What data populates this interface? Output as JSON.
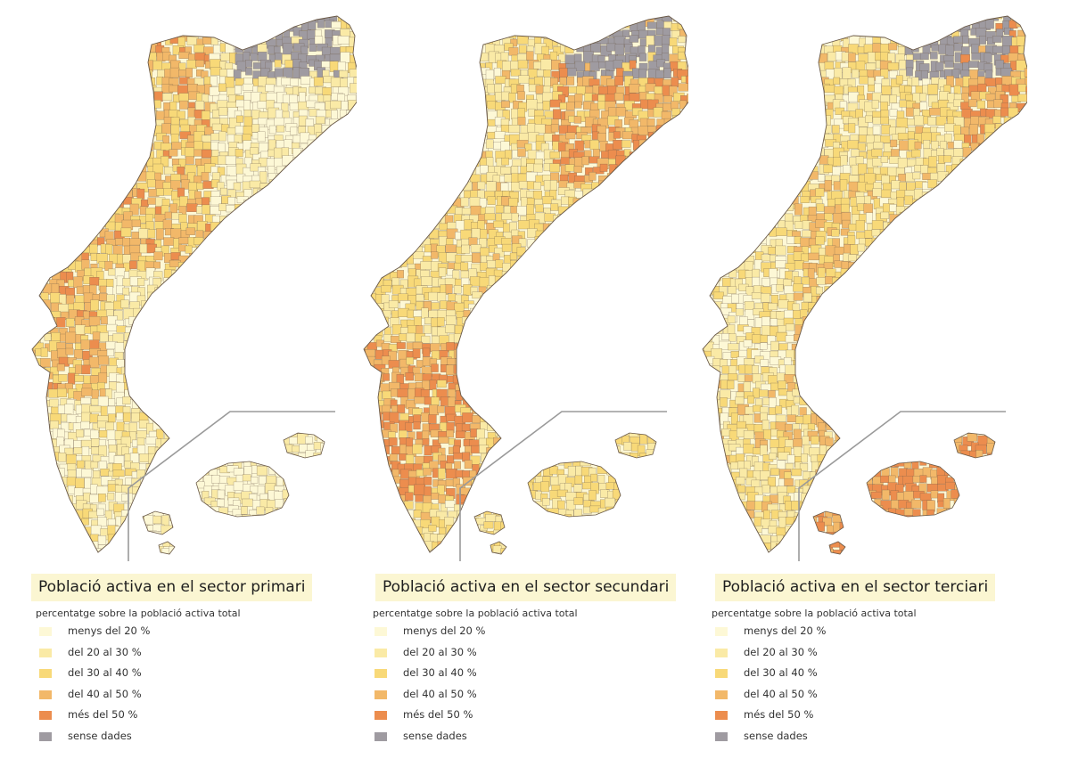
{
  "colors": {
    "c0": "#fdf8d6",
    "c1": "#faeaa6",
    "c2": "#f8d978",
    "c3": "#f2b869",
    "c4": "#ec8d4e",
    "nd": "#9f9ba1",
    "border": "#6b5a48",
    "frame": "#9a9a9a"
  },
  "panels": [
    {
      "title": "Població activa en el sector primari",
      "subtitle": "percentatge sobre la població activa total",
      "theme": "primari",
      "legend": [
        {
          "label": "menys del 20 %",
          "color": "#fdf8d6"
        },
        {
          "label": "del 20 al 30 %",
          "color": "#faeaa6"
        },
        {
          "label": "del 30 al 40 %",
          "color": "#f8d978"
        },
        {
          "label": "del 40 al 50 %",
          "color": "#f2b869"
        },
        {
          "label": "més del 50 %",
          "color": "#ec8d4e"
        },
        {
          "label": "sense dades",
          "color": "#9f9ba1"
        }
      ]
    },
    {
      "title": "Població activa en el sector secundari",
      "subtitle": "percentatge sobre la població activa total",
      "theme": "secundari",
      "legend": [
        {
          "label": "menys del 20 %",
          "color": "#fdf8d6"
        },
        {
          "label": "del 20 al 30 %",
          "color": "#faeaa6"
        },
        {
          "label": "del 30 al 40 %",
          "color": "#f8d978"
        },
        {
          "label": "del 40 al 50 %",
          "color": "#f2b869"
        },
        {
          "label": "més del 50 %",
          "color": "#ec8d4e"
        },
        {
          "label": "sense dades",
          "color": "#9f9ba1"
        }
      ]
    },
    {
      "title": "Població activa en el sector terciari",
      "subtitle": "percentatge sobre la població activa total",
      "theme": "terciari",
      "legend": [
        {
          "label": "menys del 20 %",
          "color": "#fdf8d6"
        },
        {
          "label": "del 20 al 30 %",
          "color": "#faeaa6"
        },
        {
          "label": "del 30 al 40 %",
          "color": "#f8d978"
        },
        {
          "label": "del 40 al 50 %",
          "color": "#f2b869"
        },
        {
          "label": "més del 50 %",
          "color": "#ec8d4e"
        },
        {
          "label": "sense dades",
          "color": "#9f9ba1"
        }
      ]
    }
  ]
}
